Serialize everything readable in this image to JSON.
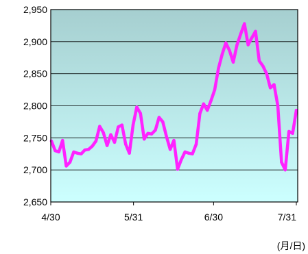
{
  "chart_data": {
    "type": "line",
    "title": "",
    "xlabel": "(月/日)",
    "ylabel": "",
    "x_tick_labels": [
      "4/30",
      "5/31",
      "6/30",
      "7/31"
    ],
    "y_tick_labels": [
      "2,650",
      "2,700",
      "2,750",
      "2,800",
      "2,850",
      "2,900",
      "2,950"
    ],
    "ylim": [
      2650,
      2950
    ],
    "grid": {
      "horizontal": true,
      "vertical": false
    },
    "legend": "none",
    "colors": {
      "line": "#ff22ff",
      "background_top": "#a6cfd0",
      "background_bottom": "#ccffff",
      "gridline": "#000000"
    },
    "series": [
      {
        "x": [
          "4/30",
          "5/1",
          "5/2",
          "5/6",
          "5/7",
          "5/8",
          "5/9",
          "5/10",
          "5/13",
          "5/14",
          "5/15",
          "5/16",
          "5/17",
          "5/20",
          "5/21",
          "5/22",
          "5/23",
          "5/24",
          "5/27",
          "5/28",
          "5/29",
          "5/30",
          "5/31",
          "5/31",
          "6/3",
          "6/4",
          "6/5",
          "6/6",
          "6/7",
          "6/10",
          "6/11",
          "6/12",
          "6/13",
          "6/14",
          "6/17",
          "6/18",
          "6/19",
          "6/20",
          "6/21",
          "6/24",
          "6/25",
          "6/26",
          "6/27",
          "6/28",
          "7/1",
          "7/2",
          "7/3",
          "7/4",
          "7/5",
          "7/8",
          "7/9",
          "7/10",
          "7/11",
          "7/12",
          "7/15",
          "7/16",
          "7/17",
          "7/18",
          "7/19",
          "7/22",
          "7/23",
          "7/24",
          "7/25",
          "7/26",
          "7/29",
          "7/30",
          "7/31"
        ],
        "values": [
          2745,
          2730,
          2728,
          2746,
          2706,
          2712,
          2728,
          2726,
          2725,
          2731,
          2732,
          2737,
          2745,
          2768,
          2758,
          2738,
          2755,
          2743,
          2767,
          2770,
          2740,
          2726,
          2770,
          2798,
          2788,
          2748,
          2757,
          2756,
          2762,
          2782,
          2775,
          2752,
          2732,
          2746,
          2701,
          2716,
          2728,
          2726,
          2725,
          2740,
          2788,
          2803,
          2793,
          2808,
          2825,
          2858,
          2880,
          2898,
          2886,
          2868,
          2895,
          2912,
          2928,
          2895,
          2906,
          2916,
          2870,
          2862,
          2850,
          2828,
          2833,
          2800,
          2712,
          2700,
          2760,
          2757,
          2793
        ]
      }
    ]
  }
}
